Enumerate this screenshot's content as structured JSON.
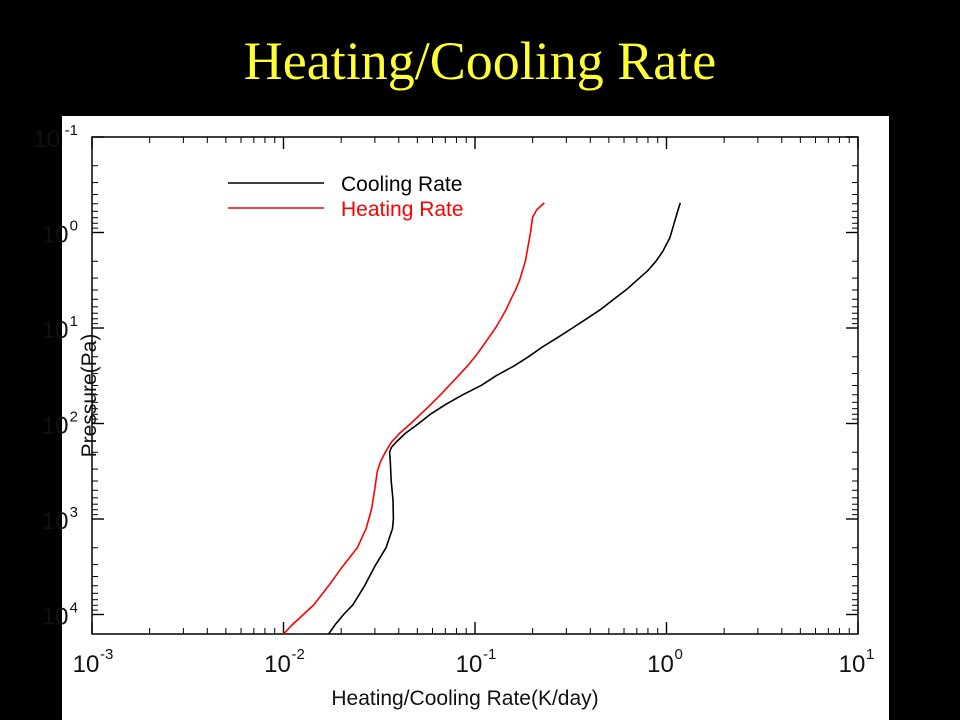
{
  "slide": {
    "title": "Heating/Cooling Rate"
  },
  "chart_data": {
    "type": "line",
    "title": "",
    "xlabel": "Heating/Cooling Rate(K/day)",
    "ylabel": "Pressure(Pa)",
    "x_scale": "log",
    "y_scale": "log",
    "y_inverted": true,
    "xlim": [
      0.001,
      10
    ],
    "ylim": [
      16000,
      0.1
    ],
    "grid": false,
    "legend_position": "top-left",
    "x_ticks": [
      {
        "base": "10",
        "exp": "-3",
        "value": 0.001
      },
      {
        "base": "10",
        "exp": "-2",
        "value": 0.01
      },
      {
        "base": "10",
        "exp": "-1",
        "value": 0.1
      },
      {
        "base": "10",
        "exp": "0",
        "value": 1
      },
      {
        "base": "10",
        "exp": "1",
        "value": 10
      }
    ],
    "y_ticks": [
      {
        "base": "10",
        "exp": "-1",
        "value": 0.1
      },
      {
        "base": "10",
        "exp": "0",
        "value": 1
      },
      {
        "base": "10",
        "exp": "1",
        "value": 10
      },
      {
        "base": "10",
        "exp": "2",
        "value": 100
      },
      {
        "base": "10",
        "exp": "3",
        "value": 1000
      },
      {
        "base": "10",
        "exp": "4",
        "value": 10000
      }
    ],
    "series": [
      {
        "name": "Cooling Rate",
        "color": "#000000",
        "points": [
          [
            0.0172,
            16000
          ],
          [
            0.0187,
            12600
          ],
          [
            0.0206,
            10000
          ],
          [
            0.023,
            7940
          ],
          [
            0.0265,
            5000
          ],
          [
            0.0299,
            3160
          ],
          [
            0.0343,
            2000
          ],
          [
            0.0371,
            1260
          ],
          [
            0.0375,
            1000
          ],
          [
            0.0373,
            631
          ],
          [
            0.0365,
            400
          ],
          [
            0.0361,
            251
          ],
          [
            0.0358,
            200
          ],
          [
            0.0366,
            178
          ],
          [
            0.0386,
            158
          ],
          [
            0.0434,
            126
          ],
          [
            0.0508,
            100
          ],
          [
            0.0588,
            79.4
          ],
          [
            0.0703,
            63.1
          ],
          [
            0.0863,
            50.1
          ],
          [
            0.108,
            39.8
          ],
          [
            0.129,
            31.6
          ],
          [
            0.159,
            25.1
          ],
          [
            0.19,
            20
          ],
          [
            0.225,
            15.8
          ],
          [
            0.27,
            12.6
          ],
          [
            0.323,
            10
          ],
          [
            0.385,
            7.94
          ],
          [
            0.457,
            6.31
          ],
          [
            0.53,
            5.01
          ],
          [
            0.616,
            3.98
          ],
          [
            0.701,
            3.16
          ],
          [
            0.798,
            2.51
          ],
          [
            0.88,
            2
          ],
          [
            0.955,
            1.58
          ],
          [
            1.04,
            1.14
          ],
          [
            1.09,
            0.83
          ],
          [
            1.14,
            0.61
          ],
          [
            1.18,
            0.49
          ]
        ]
      },
      {
        "name": "Heating Rate",
        "color": "#ff0000",
        "points": [
          [
            0.01,
            16000
          ],
          [
            0.0112,
            12600
          ],
          [
            0.0127,
            10000
          ],
          [
            0.0144,
            7940
          ],
          [
            0.0172,
            5000
          ],
          [
            0.0203,
            3160
          ],
          [
            0.0243,
            2000
          ],
          [
            0.027,
            1260
          ],
          [
            0.0288,
            794
          ],
          [
            0.0299,
            501
          ],
          [
            0.0309,
            316
          ],
          [
            0.0321,
            251
          ],
          [
            0.034,
            200
          ],
          [
            0.0365,
            158
          ],
          [
            0.0405,
            126
          ],
          [
            0.0462,
            100
          ],
          [
            0.0522,
            79.4
          ],
          [
            0.0588,
            63.1
          ],
          [
            0.066,
            50.1
          ],
          [
            0.0735,
            39.8
          ],
          [
            0.082,
            31.6
          ],
          [
            0.091,
            25.1
          ],
          [
            0.1,
            20
          ],
          [
            0.109,
            15.8
          ],
          [
            0.118,
            12.6
          ],
          [
            0.128,
            10
          ],
          [
            0.137,
            7.94
          ],
          [
            0.146,
            6.31
          ],
          [
            0.154,
            5.01
          ],
          [
            0.163,
            3.98
          ],
          [
            0.171,
            3.16
          ],
          [
            0.177,
            2.51
          ],
          [
            0.183,
            2
          ],
          [
            0.187,
            1.58
          ],
          [
            0.191,
            1.26
          ],
          [
            0.195,
            1
          ],
          [
            0.2,
            0.69
          ],
          [
            0.21,
            0.58
          ],
          [
            0.23,
            0.49
          ]
        ]
      }
    ]
  }
}
